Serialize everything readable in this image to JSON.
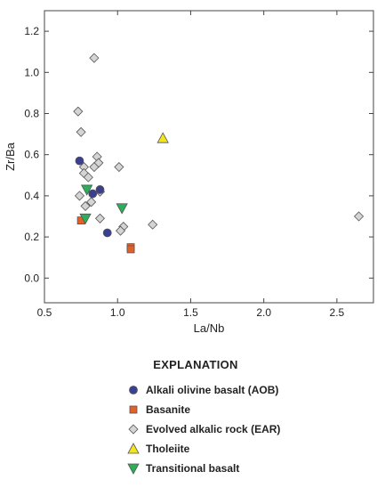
{
  "chart_data": {
    "type": "scatter",
    "xlabel": "La/Nb",
    "ylabel": "Zr/Ba",
    "xlim": [
      0.5,
      2.75
    ],
    "ylim": [
      -0.12,
      1.3
    ],
    "x_ticks": [
      "0.5",
      "1.0",
      "1.5",
      "2.0",
      "2.5"
    ],
    "y_ticks": [
      "0.0",
      "0.2",
      "0.4",
      "0.6",
      "0.8",
      "1.0",
      "1.2"
    ],
    "legend_title": "EXPLANATION",
    "legend_position": "bottom",
    "series": [
      {
        "name": "Alkali olivine basalt (AOB)",
        "marker": "circle",
        "color": "#3b3f8f",
        "points": [
          [
            0.74,
            0.57
          ],
          [
            0.83,
            0.41
          ],
          [
            0.88,
            0.43
          ],
          [
            0.93,
            0.22
          ]
        ]
      },
      {
        "name": "Basanite",
        "marker": "square",
        "color": "#e2612a",
        "points": [
          [
            0.75,
            0.28
          ],
          [
            1.09,
            0.15
          ],
          [
            1.09,
            0.14
          ]
        ]
      },
      {
        "name": "Evolved alkalic rock (EAR)",
        "marker": "diamond",
        "color": "#d4d4d4",
        "points": [
          [
            0.84,
            1.07
          ],
          [
            0.73,
            0.81
          ],
          [
            0.75,
            0.71
          ],
          [
            0.86,
            0.59
          ],
          [
            0.87,
            0.56
          ],
          [
            0.77,
            0.54
          ],
          [
            0.84,
            0.54
          ],
          [
            0.77,
            0.51
          ],
          [
            0.8,
            0.49
          ],
          [
            0.88,
            0.42
          ],
          [
            0.74,
            0.4
          ],
          [
            0.82,
            0.37
          ],
          [
            0.78,
            0.35
          ],
          [
            0.88,
            0.29
          ],
          [
            1.01,
            0.54
          ],
          [
            1.04,
            0.25
          ],
          [
            1.02,
            0.23
          ],
          [
            1.24,
            0.26
          ],
          [
            2.65,
            0.3
          ]
        ]
      },
      {
        "name": "Tholeiite",
        "marker": "triangle-up",
        "color": "#f2e51d",
        "points": [
          [
            1.31,
            0.68
          ]
        ]
      },
      {
        "name": "Transitional basalt",
        "marker": "triangle-down",
        "color": "#2bb05a",
        "points": [
          [
            0.79,
            0.43
          ],
          [
            1.03,
            0.34
          ],
          [
            0.78,
            0.29
          ]
        ]
      }
    ]
  }
}
